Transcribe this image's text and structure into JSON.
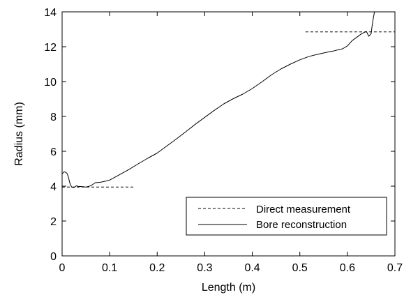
{
  "chart_data": {
    "type": "line",
    "xlabel": "Length (m)",
    "ylabel": "Radius (mm)",
    "xlim": [
      0,
      0.7
    ],
    "ylim": [
      0,
      14
    ],
    "x_ticks": [
      0,
      0.1,
      0.2,
      0.3,
      0.4,
      0.5,
      0.6,
      0.7
    ],
    "y_ticks": [
      0,
      2,
      4,
      6,
      8,
      10,
      12,
      14
    ],
    "x_tick_labels": [
      "0",
      "0.1",
      "0.2",
      "0.3",
      "0.4",
      "0.5",
      "0.6",
      "0.7"
    ],
    "y_tick_labels": [
      "0",
      "2",
      "4",
      "6",
      "8",
      "10",
      "12",
      "14"
    ],
    "grid": false,
    "legend_position": "bottom-right",
    "series": [
      {
        "name": "Direct measurement",
        "style": "dashed",
        "color": "#000000",
        "segments": [
          {
            "x": [
              0.0,
              0.153
            ],
            "y": [
              3.95,
              3.95
            ]
          },
          {
            "x": [
              0.512,
              0.7
            ],
            "y": [
              12.85,
              12.85
            ]
          }
        ]
      },
      {
        "name": "Bore reconstruction",
        "style": "solid",
        "color": "#000000",
        "x": [
          0.0,
          0.003,
          0.006,
          0.01,
          0.013,
          0.016,
          0.02,
          0.025,
          0.03,
          0.035,
          0.04,
          0.05,
          0.06,
          0.07,
          0.08,
          0.09,
          0.1,
          0.12,
          0.14,
          0.16,
          0.18,
          0.2,
          0.22,
          0.24,
          0.26,
          0.28,
          0.3,
          0.32,
          0.34,
          0.36,
          0.38,
          0.4,
          0.42,
          0.44,
          0.46,
          0.48,
          0.5,
          0.52,
          0.54,
          0.56,
          0.57,
          0.58,
          0.59,
          0.6,
          0.61,
          0.62,
          0.63,
          0.64,
          0.645,
          0.65,
          0.652,
          0.655,
          0.657
        ],
        "y": [
          4.7,
          4.8,
          4.82,
          4.75,
          4.55,
          4.2,
          3.95,
          3.92,
          4.02,
          3.98,
          3.98,
          3.95,
          4.02,
          4.2,
          4.22,
          4.28,
          4.35,
          4.65,
          4.95,
          5.28,
          5.6,
          5.9,
          6.3,
          6.7,
          7.12,
          7.55,
          7.95,
          8.35,
          8.72,
          9.02,
          9.28,
          9.6,
          9.98,
          10.38,
          10.72,
          11.0,
          11.25,
          11.45,
          11.58,
          11.7,
          11.75,
          11.82,
          11.88,
          12.05,
          12.35,
          12.55,
          12.75,
          12.88,
          12.6,
          12.75,
          13.2,
          13.7,
          14.0
        ]
      }
    ]
  }
}
